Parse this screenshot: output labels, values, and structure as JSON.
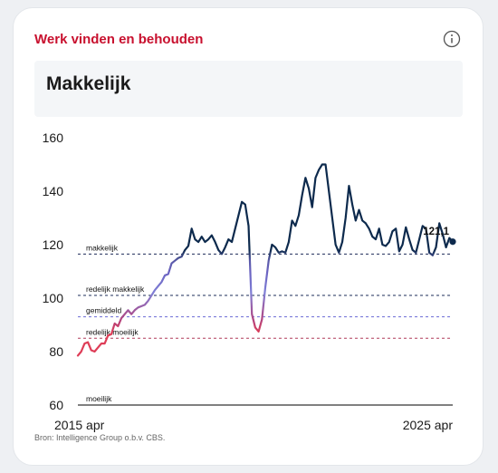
{
  "card": {
    "title": "Werk vinden en behouden",
    "status_label": "Makkelijk",
    "source": "Bron: Intelligence Group o.b.v. CBS.",
    "info_icon": "info-circle-icon"
  },
  "colors": {
    "title_red": "#c8102e",
    "easy_navy": "#0d2a4d",
    "fairly_easy_purple": "#6a62c0",
    "average_blue": "#7f7fd6",
    "fairly_hard_purple": "#b04480",
    "hard_red": "#de3d57",
    "reference_navy": "#1e2d5a",
    "reference_purple": "#6b6bd6",
    "reference_red": "#b03a5a"
  },
  "chart_data": {
    "type": "line",
    "x_start_label": "2015 apr",
    "x_end_label": "2025 apr",
    "ylim": [
      60,
      160
    ],
    "yticks": [
      60,
      80,
      100,
      120,
      140,
      160
    ],
    "reference_lines": [
      {
        "label": "makkelijk",
        "value": 116.5,
        "color": "#1e2d5a"
      },
      {
        "label": "redelijk makkelijk",
        "value": 101,
        "color": "#1e2d5a"
      },
      {
        "label": "gemiddeld",
        "value": 93,
        "color": "#6b6bd6"
      },
      {
        "label": "redelijk moeilijk",
        "value": 85,
        "color": "#b03a5a"
      },
      {
        "label": "moeilijk",
        "value": 60,
        "color": "#000000"
      }
    ],
    "last_value_label": "121,1",
    "series": [
      {
        "values": [
          78.5,
          80,
          83,
          83.5,
          80.5,
          80,
          81.5,
          83,
          83,
          86,
          86.5,
          90.5,
          89.5,
          92.5,
          94,
          95.5,
          94,
          95.5,
          96.5,
          97,
          97.5,
          99,
          101,
          103,
          104.5,
          106,
          108.5,
          109,
          113,
          114,
          115,
          115.5,
          118,
          119.5,
          126,
          122,
          121,
          123,
          121,
          122,
          123.5,
          121,
          118,
          116.5,
          119,
          122,
          121,
          126,
          131,
          136,
          135,
          127,
          94,
          89,
          87.5,
          92,
          104,
          114,
          120,
          119,
          117,
          117.5,
          117,
          121,
          129,
          127,
          131,
          138.5,
          145,
          141,
          134,
          145,
          148,
          150,
          150,
          140,
          130,
          120,
          117,
          121,
          130,
          142,
          135,
          129,
          133,
          129,
          128,
          126,
          123,
          122,
          126,
          120,
          119.5,
          121,
          125,
          126,
          117.5,
          120,
          126.5,
          122,
          118,
          117,
          122,
          127,
          126,
          117,
          116,
          119,
          128,
          124,
          119,
          122.5,
          121.1
        ]
      }
    ]
  }
}
